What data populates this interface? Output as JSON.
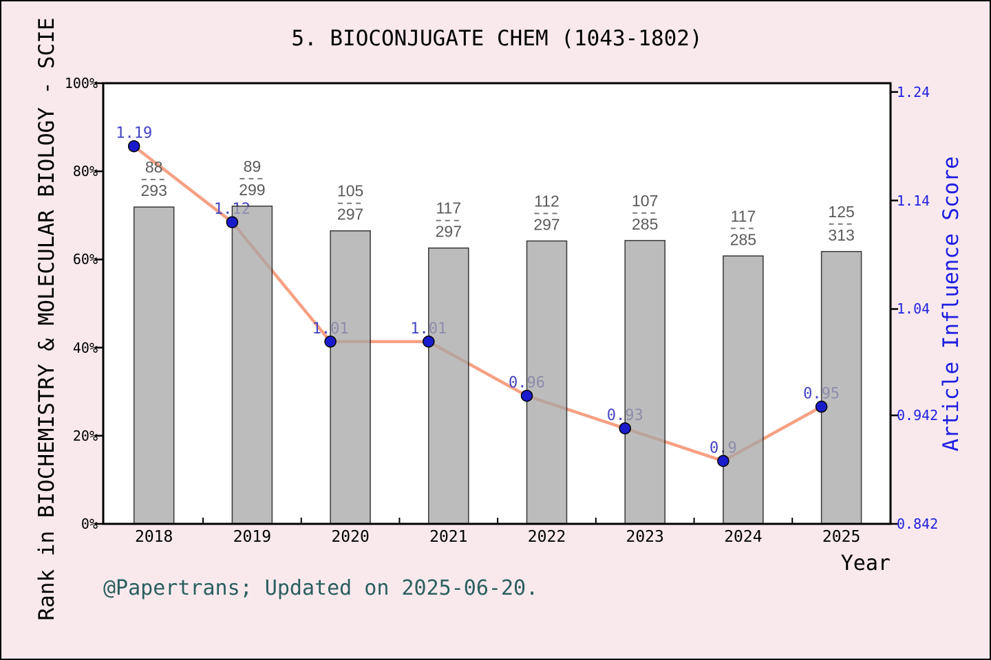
{
  "footer": "@Papertrans; Updated on 2025-06-20.",
  "chart_data": {
    "type": "bar+line",
    "title": "5. BIOCONJUGATE CHEM (1043-1802)",
    "categories": [
      "2018",
      "2019",
      "2020",
      "2021",
      "2022",
      "2023",
      "2024",
      "2025"
    ],
    "xlabel": "Year",
    "grid": false,
    "legend": "none",
    "series": [
      {
        "name": "Rank in category (gray bars, left axis)",
        "kind": "bar",
        "axis": "left",
        "rank": [
          88,
          89,
          105,
          117,
          112,
          107,
          117,
          125
        ],
        "total": [
          293,
          299,
          297,
          297,
          297,
          285,
          285,
          313
        ],
        "rank_label_top": [
          "88",
          "89",
          "105",
          "117",
          "112",
          "107",
          "117",
          "125"
        ],
        "rank_label_bottom": [
          "293",
          "299",
          "297",
          "297",
          "297",
          "285",
          "285",
          "313"
        ],
        "bar_percent": [
          71.9,
          72.1,
          66.5,
          62.6,
          64.2,
          64.3,
          60.8,
          61.8
        ]
      },
      {
        "name": "Article Influence Score (orange line, blue markers, right axis)",
        "kind": "line",
        "axis": "right",
        "values": [
          1.19,
          1.12,
          1.01,
          1.01,
          0.96,
          0.93,
          0.9,
          0.95
        ],
        "point_labels": [
          "1.19",
          "1.12",
          "1.01",
          "1.01",
          "0.96",
          "0.93",
          "0.9",
          "0.95"
        ]
      }
    ],
    "left_axis": {
      "label": "Rank in BIOCHEMISTRY & MOLECULAR BIOLOGY - SCIE",
      "ticks": [
        "100%",
        "80%",
        "60%",
        "40%",
        "20%",
        "0%"
      ],
      "tick_values": [
        100,
        80,
        60,
        40,
        20,
        0
      ],
      "range": [
        0,
        100
      ]
    },
    "right_axis": {
      "label": "Article Influence Score",
      "ticks": [
        "1.24",
        "1.14",
        "1.04",
        "0.942",
        "0.842"
      ],
      "tick_values": [
        1.24,
        1.14,
        1.04,
        0.942,
        0.842
      ],
      "range": [
        0.842,
        1.24
      ]
    }
  },
  "colors": {
    "page_bg": "#f9e9ed",
    "plot_bg": "#ffffff",
    "frame": "#000000",
    "bar_fill": "#a5a5a5",
    "bar_fill_opacity": 0.75,
    "bar_edge": "#1a1a1a",
    "line": "#f7a083",
    "marker_fill": "#1b1bce",
    "marker_edge": "#000000",
    "point_label": "#4343c4",
    "right_axis_text": "#1f1fe0",
    "fraction_label": "#5a5a5a",
    "fraction_dash": "#7a7a7a",
    "footer_text": "#2a5f5f",
    "text": "#000000"
  }
}
